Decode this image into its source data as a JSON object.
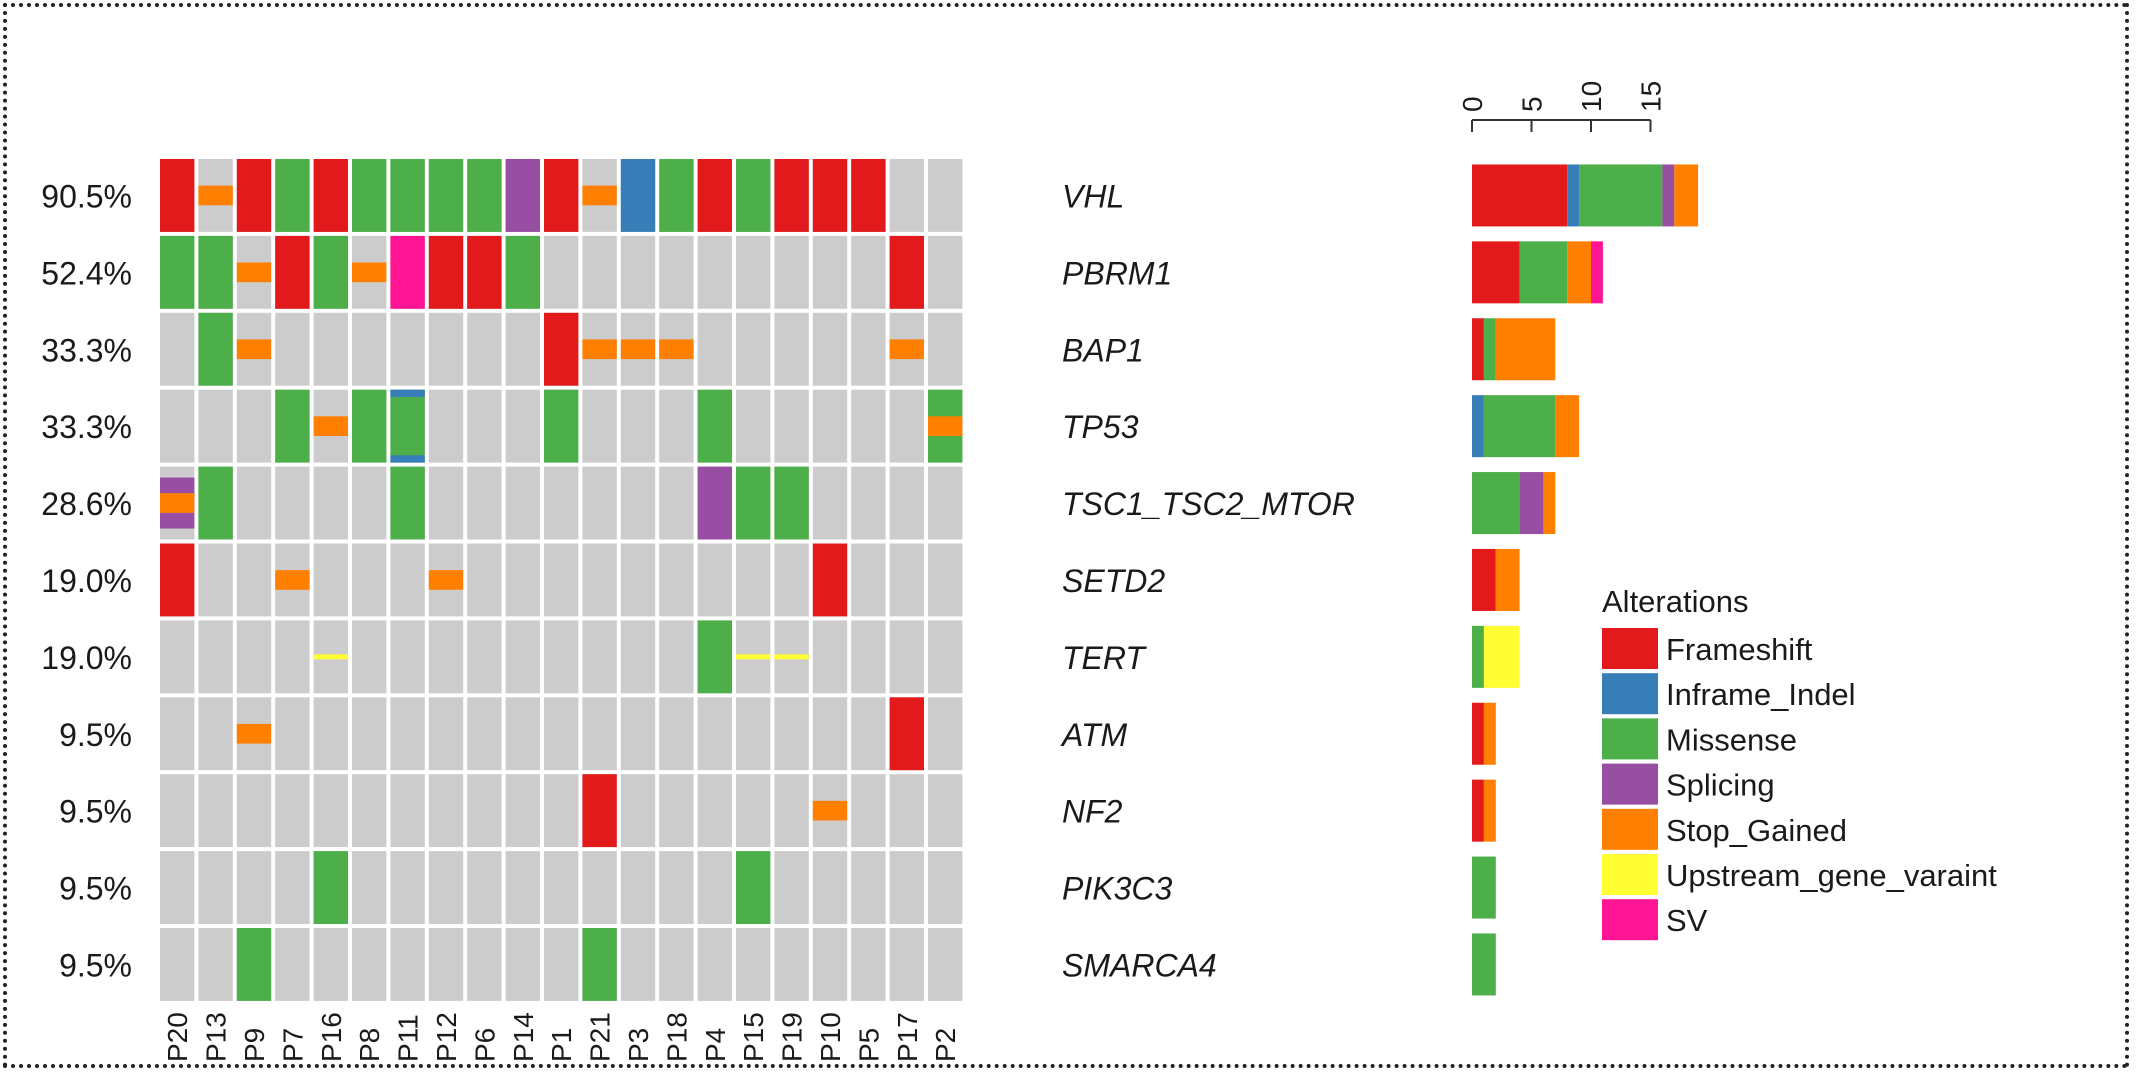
{
  "chart_data": {
    "type": "oncoprint",
    "samples": [
      "P20",
      "P13",
      "P9",
      "P7",
      "P16",
      "P8",
      "P11",
      "P12",
      "P6",
      "P14",
      "P1",
      "P21",
      "P3",
      "P18",
      "P4",
      "P15",
      "P19",
      "P10",
      "P5",
      "P17",
      "P2"
    ],
    "genes": [
      {
        "name": "VHL",
        "pct": "90.5%",
        "counts": {
          "Frameshift": 8,
          "Inframe_Indel": 1,
          "Missense": 7,
          "Splicing": 1,
          "Stop_Gained": 2
        }
      },
      {
        "name": "PBRM1",
        "pct": "52.4%",
        "counts": {
          "Frameshift": 4,
          "Missense": 4,
          "Stop_Gained": 2,
          "SV": 1
        }
      },
      {
        "name": "BAP1",
        "pct": "33.3%",
        "counts": {
          "Frameshift": 1,
          "Missense": 1,
          "Stop_Gained": 5
        }
      },
      {
        "name": "TP53",
        "pct": "33.3%",
        "counts": {
          "Inframe_Indel": 1,
          "Missense": 6,
          "Stop_Gained": 2
        }
      },
      {
        "name": "TSC1_TSC2_MTOR",
        "pct": "28.6%",
        "counts": {
          "Missense": 4,
          "Splicing": 2,
          "Stop_Gained": 1
        }
      },
      {
        "name": "SETD2",
        "pct": "19.0%",
        "counts": {
          "Frameshift": 2,
          "Stop_Gained": 2
        }
      },
      {
        "name": "TERT",
        "pct": "19.0%",
        "counts": {
          "Missense": 1,
          "Upstream_gene_varaint": 3
        }
      },
      {
        "name": "ATM",
        "pct": "9.5%",
        "counts": {
          "Frameshift": 1,
          "Stop_Gained": 1
        }
      },
      {
        "name": "NF2",
        "pct": "9.5%",
        "counts": {
          "Frameshift": 1,
          "Stop_Gained": 1
        }
      },
      {
        "name": "PIK3C3",
        "pct": "9.5%",
        "counts": {
          "Missense": 2
        }
      },
      {
        "name": "SMARCA4",
        "pct": "9.5%",
        "counts": {
          "Missense": 2
        }
      }
    ],
    "alterations": [
      {
        "gene": "VHL",
        "sample": "P20",
        "types": [
          "Frameshift"
        ]
      },
      {
        "gene": "VHL",
        "sample": "P13",
        "types": [
          "Stop_Gained"
        ]
      },
      {
        "gene": "VHL",
        "sample": "P9",
        "types": [
          "Frameshift"
        ]
      },
      {
        "gene": "VHL",
        "sample": "P7",
        "types": [
          "Missense"
        ]
      },
      {
        "gene": "VHL",
        "sample": "P16",
        "types": [
          "Frameshift"
        ]
      },
      {
        "gene": "VHL",
        "sample": "P8",
        "types": [
          "Missense"
        ]
      },
      {
        "gene": "VHL",
        "sample": "P11",
        "types": [
          "Missense"
        ]
      },
      {
        "gene": "VHL",
        "sample": "P12",
        "types": [
          "Missense"
        ]
      },
      {
        "gene": "VHL",
        "sample": "P6",
        "types": [
          "Missense"
        ]
      },
      {
        "gene": "VHL",
        "sample": "P14",
        "types": [
          "Splicing"
        ]
      },
      {
        "gene": "VHL",
        "sample": "P1",
        "types": [
          "Frameshift"
        ]
      },
      {
        "gene": "VHL",
        "sample": "P21",
        "types": [
          "Stop_Gained"
        ]
      },
      {
        "gene": "VHL",
        "sample": "P3",
        "types": [
          "Inframe_Indel"
        ]
      },
      {
        "gene": "VHL",
        "sample": "P18",
        "types": [
          "Missense"
        ]
      },
      {
        "gene": "VHL",
        "sample": "P4",
        "types": [
          "Frameshift"
        ]
      },
      {
        "gene": "VHL",
        "sample": "P15",
        "types": [
          "Missense"
        ]
      },
      {
        "gene": "VHL",
        "sample": "P19",
        "types": [
          "Frameshift"
        ]
      },
      {
        "gene": "VHL",
        "sample": "P10",
        "types": [
          "Frameshift"
        ]
      },
      {
        "gene": "VHL",
        "sample": "P5",
        "types": [
          "Frameshift"
        ]
      },
      {
        "gene": "PBRM1",
        "sample": "P20",
        "types": [
          "Missense"
        ]
      },
      {
        "gene": "PBRM1",
        "sample": "P13",
        "types": [
          "Missense"
        ]
      },
      {
        "gene": "PBRM1",
        "sample": "P9",
        "types": [
          "Stop_Gained"
        ]
      },
      {
        "gene": "PBRM1",
        "sample": "P7",
        "types": [
          "Frameshift"
        ]
      },
      {
        "gene": "PBRM1",
        "sample": "P16",
        "types": [
          "Missense"
        ]
      },
      {
        "gene": "PBRM1",
        "sample": "P8",
        "types": [
          "Stop_Gained"
        ]
      },
      {
        "gene": "PBRM1",
        "sample": "P11",
        "types": [
          "SV"
        ]
      },
      {
        "gene": "PBRM1",
        "sample": "P12",
        "types": [
          "Frameshift"
        ]
      },
      {
        "gene": "PBRM1",
        "sample": "P6",
        "types": [
          "Frameshift"
        ]
      },
      {
        "gene": "PBRM1",
        "sample": "P14",
        "types": [
          "Missense"
        ]
      },
      {
        "gene": "PBRM1",
        "sample": "P17",
        "types": [
          "Frameshift"
        ]
      },
      {
        "gene": "BAP1",
        "sample": "P13",
        "types": [
          "Missense"
        ]
      },
      {
        "gene": "BAP1",
        "sample": "P9",
        "types": [
          "Stop_Gained"
        ]
      },
      {
        "gene": "BAP1",
        "sample": "P1",
        "types": [
          "Frameshift"
        ]
      },
      {
        "gene": "BAP1",
        "sample": "P21",
        "types": [
          "Stop_Gained"
        ]
      },
      {
        "gene": "BAP1",
        "sample": "P3",
        "types": [
          "Stop_Gained"
        ]
      },
      {
        "gene": "BAP1",
        "sample": "P18",
        "types": [
          "Stop_Gained"
        ]
      },
      {
        "gene": "BAP1",
        "sample": "P17",
        "types": [
          "Stop_Gained"
        ]
      },
      {
        "gene": "TP53",
        "sample": "P7",
        "types": [
          "Missense"
        ]
      },
      {
        "gene": "TP53",
        "sample": "P16",
        "types": [
          "Stop_Gained"
        ]
      },
      {
        "gene": "TP53",
        "sample": "P8",
        "types": [
          "Missense"
        ]
      },
      {
        "gene": "TP53",
        "sample": "P11",
        "types": [
          "Missense",
          "Inframe_Indel"
        ]
      },
      {
        "gene": "TP53",
        "sample": "P1",
        "types": [
          "Missense"
        ]
      },
      {
        "gene": "TP53",
        "sample": "P4",
        "types": [
          "Missense"
        ]
      },
      {
        "gene": "TP53",
        "sample": "P2",
        "types": [
          "Missense",
          "Stop_Gained"
        ]
      },
      {
        "gene": "TSC1_TSC2_MTOR",
        "sample": "P20",
        "types": [
          "Splicing",
          "Stop_Gained"
        ]
      },
      {
        "gene": "TSC1_TSC2_MTOR",
        "sample": "P13",
        "types": [
          "Missense"
        ]
      },
      {
        "gene": "TSC1_TSC2_MTOR",
        "sample": "P11",
        "types": [
          "Missense"
        ]
      },
      {
        "gene": "TSC1_TSC2_MTOR",
        "sample": "P4",
        "types": [
          "Splicing"
        ]
      },
      {
        "gene": "TSC1_TSC2_MTOR",
        "sample": "P15",
        "types": [
          "Missense"
        ]
      },
      {
        "gene": "TSC1_TSC2_MTOR",
        "sample": "P19",
        "types": [
          "Missense"
        ]
      },
      {
        "gene": "SETD2",
        "sample": "P20",
        "types": [
          "Frameshift"
        ]
      },
      {
        "gene": "SETD2",
        "sample": "P7",
        "types": [
          "Stop_Gained"
        ]
      },
      {
        "gene": "SETD2",
        "sample": "P12",
        "types": [
          "Stop_Gained"
        ]
      },
      {
        "gene": "SETD2",
        "sample": "P10",
        "types": [
          "Frameshift"
        ]
      },
      {
        "gene": "TERT",
        "sample": "P16",
        "types": [
          "Upstream_gene_varaint"
        ]
      },
      {
        "gene": "TERT",
        "sample": "P4",
        "types": [
          "Missense"
        ]
      },
      {
        "gene": "TERT",
        "sample": "P15",
        "types": [
          "Upstream_gene_varaint"
        ]
      },
      {
        "gene": "TERT",
        "sample": "P19",
        "types": [
          "Upstream_gene_varaint"
        ]
      },
      {
        "gene": "ATM",
        "sample": "P9",
        "types": [
          "Stop_Gained"
        ]
      },
      {
        "gene": "ATM",
        "sample": "P17",
        "types": [
          "Frameshift"
        ]
      },
      {
        "gene": "NF2",
        "sample": "P21",
        "types": [
          "Frameshift"
        ]
      },
      {
        "gene": "NF2",
        "sample": "P10",
        "types": [
          "Stop_Gained"
        ]
      },
      {
        "gene": "PIK3C3",
        "sample": "P16",
        "types": [
          "Missense"
        ]
      },
      {
        "gene": "PIK3C3",
        "sample": "P15",
        "types": [
          "Missense"
        ]
      },
      {
        "gene": "SMARCA4",
        "sample": "P9",
        "types": [
          "Missense"
        ]
      },
      {
        "gene": "SMARCA4",
        "sample": "P21",
        "types": [
          "Missense"
        ]
      }
    ],
    "bar_axis": {
      "ticks": [
        "0",
        "5",
        "10",
        "15"
      ],
      "max": 15
    },
    "legend": {
      "title": "Alterations",
      "items": [
        {
          "name": "Frameshift",
          "color": "#e31a1c"
        },
        {
          "name": "Inframe_Indel",
          "color": "#377eb8"
        },
        {
          "name": "Missense",
          "color": "#4daf4a"
        },
        {
          "name": "Splicing",
          "color": "#984ea3"
        },
        {
          "name": "Stop_Gained",
          "color": "#ff7f00"
        },
        {
          "name": "Upstream_gene_varaint",
          "color": "#ffff33"
        },
        {
          "name": "SV",
          "color": "#ff1493"
        }
      ]
    },
    "background_color": "#cccccc"
  }
}
